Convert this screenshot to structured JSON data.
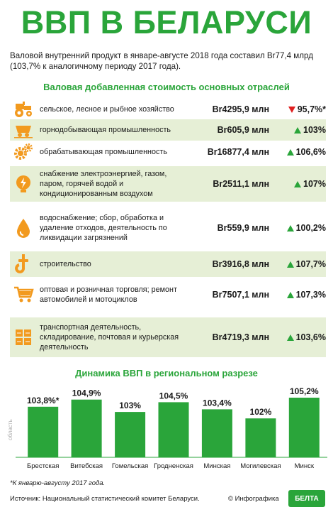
{
  "title": "ВВП В БЕЛАРУСИ",
  "intro": "Валовой внутренний продукт в январе-августе 2018 года составил Br77,4 млрд (103,7% к аналогичному периоду 2017 года).",
  "section1_title": "Валовая добавленная стоимость основных отраслей",
  "colors": {
    "green": "#2aa53a",
    "orange": "#f29a1f",
    "red": "#e02020",
    "shade": "#e6efd6"
  },
  "industries": [
    {
      "icon": "tractor-icon",
      "label": "сельское, лесное и рыбное хозяйство",
      "value": "Br4295,9 млн",
      "percent": "95,7%*",
      "trend": "down",
      "shaded": false
    },
    {
      "icon": "mining-cart-icon",
      "label": "горнодобывающая промышленность",
      "value": "Br605,9 млн",
      "percent": "103%",
      "trend": "up",
      "shaded": true
    },
    {
      "icon": "gears-icon",
      "label": "обрабатывающая промышленность",
      "value": "Br16877,4 млн",
      "percent": "106,6%",
      "trend": "up",
      "shaded": false
    },
    {
      "icon": "lightning-icon",
      "label": "снабжение электроэнергией, газом, паром, горячей водой и кондиционированным воздухом",
      "value": "Br2511,1 млн",
      "percent": "107%",
      "trend": "up",
      "shaded": true
    },
    {
      "icon": "water-drop-icon",
      "label": "водоснабжение; сбор, обработка и удаление отходов, деятельность по ликвидации загрязнений",
      "value": "Br559,9 млн",
      "percent": "100,2%",
      "trend": "up",
      "shaded": false
    },
    {
      "icon": "crane-hook-icon",
      "label": "строительство",
      "value": "Br3916,8 млн",
      "percent": "107,7%",
      "trend": "up",
      "shaded": true
    },
    {
      "icon": "shopping-cart-icon",
      "label": "оптовая и розничная торговля; ремонт автомобилей и мотоциклов",
      "value": "Br7507,1 млн",
      "percent": "107,3%",
      "trend": "up",
      "shaded": false
    },
    {
      "icon": "cargo-boxes-icon",
      "label": "транспортная деятельность, складирование, почтовая и курьерская деятельность",
      "value": "Br4719,3 млн",
      "percent": "103,6%",
      "trend": "up",
      "shaded": true
    }
  ],
  "chart_data": {
    "type": "bar",
    "title": "Динамика ВВП в региональном разрезе",
    "categories": [
      "Брестская",
      "Витебская",
      "Гомельская",
      "Гродненская",
      "Минская",
      "Могилевская",
      "Минск"
    ],
    "values": [
      103.8,
      104.9,
      103.0,
      104.5,
      103.4,
      102.0,
      105.2
    ],
    "data_labels": [
      "103,8%*",
      "104,9%",
      "103%",
      "104,5%",
      "103,4%",
      "102%",
      "105,2%"
    ],
    "side_label": "область",
    "grid": false,
    "bar_color": "#2aa53a"
  },
  "footnote": "*К январю-августу 2017 года.",
  "source": "Источник: Национальный статистический комитет Беларуси.",
  "credit": "© Инфографика",
  "logo_text": "БЕЛТА"
}
